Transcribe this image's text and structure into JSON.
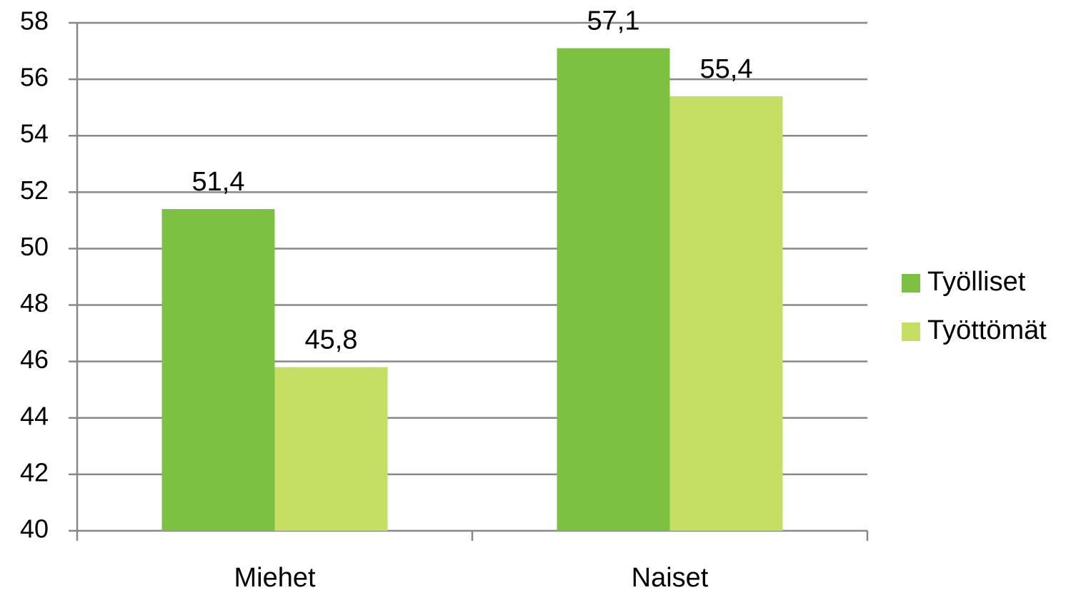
{
  "chart_data": {
    "type": "bar",
    "categories": [
      "Miehet",
      "Naiset"
    ],
    "series": [
      {
        "name": "Työlliset",
        "color": "#7dc142",
        "values": [
          51.4,
          57.1
        ],
        "value_labels": [
          "51,4",
          "57,1"
        ]
      },
      {
        "name": "Työttömät",
        "color": "#c5df65",
        "values": [
          45.8,
          55.4
        ],
        "value_labels": [
          "45,8",
          "55,4"
        ]
      }
    ],
    "ylim": [
      40,
      58
    ],
    "yticks": [
      40,
      42,
      44,
      46,
      48,
      50,
      52,
      54,
      56,
      58
    ],
    "grid": true,
    "legend": "right"
  }
}
